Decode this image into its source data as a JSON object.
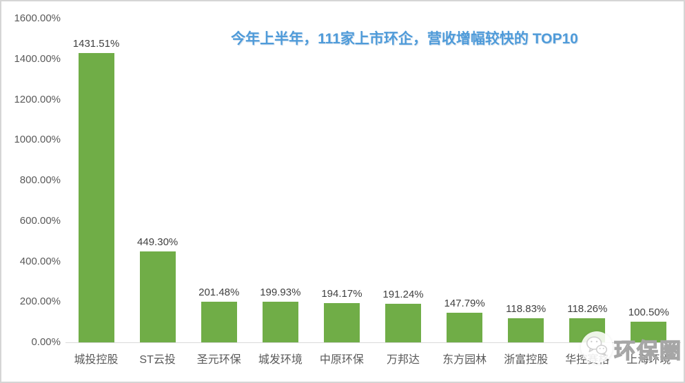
{
  "colors": {
    "bar": "#70AD47",
    "title": "#4F9BD9",
    "axis_text": "#595959",
    "value_label_text": "#3F3F3F",
    "baseline": "#D9D9D9"
  },
  "chart_data": {
    "type": "bar",
    "title": "今年上半年，111家上市环企，营收增幅较快的 TOP10",
    "categories": [
      "城投控股",
      "ST云投",
      "圣元环保",
      "城发环境",
      "中原环保",
      "万邦达",
      "东方园林",
      "浙富控股",
      "华控赛格",
      "上海环境"
    ],
    "values": [
      1431.51,
      449.3,
      201.48,
      199.93,
      194.17,
      191.24,
      147.79,
      118.83,
      118.26,
      100.5
    ],
    "value_labels": [
      "1431.51%",
      "449.30%",
      "201.48%",
      "199.93%",
      "194.17%",
      "191.24%",
      "147.79%",
      "118.83%",
      "118.26%",
      "100.50%"
    ],
    "xlabel": "",
    "ylabel": "",
    "ylim": [
      0,
      1600
    ],
    "y_ticks": [
      "1600.00%",
      "1400.00%",
      "1200.00%",
      "1000.00%",
      "800.00%",
      "600.00%",
      "400.00%",
      "200.00%",
      "0.00%"
    ],
    "grid": false,
    "legend": false
  },
  "watermark": {
    "text": "环保圈",
    "icon": "wechat-chat-bubbles-icon"
  }
}
